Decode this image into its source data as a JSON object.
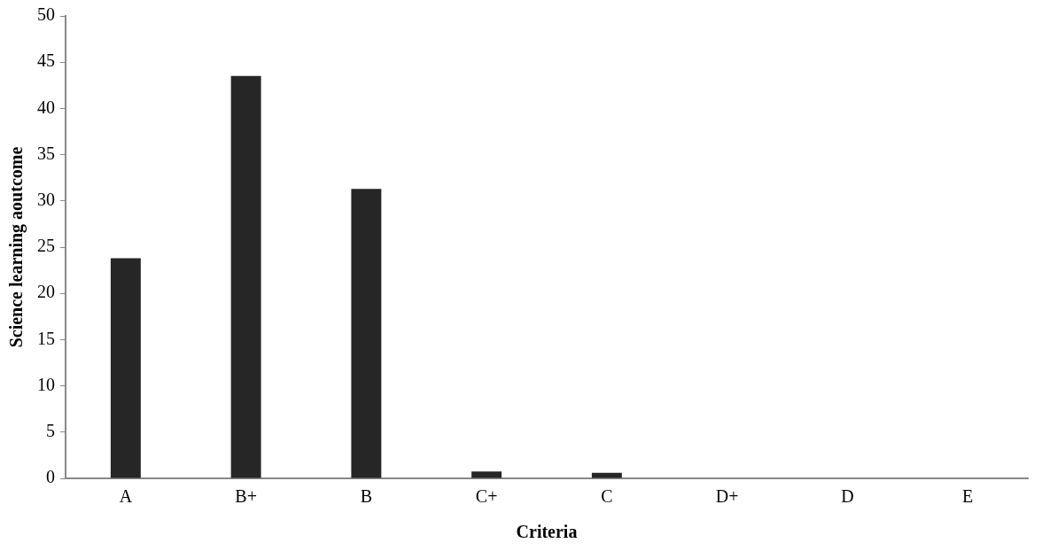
{
  "chart_data": {
    "type": "bar",
    "xlabel": "Criteria",
    "ylabel": "Science learning aoutcome",
    "categories": [
      "A",
      "B+",
      "B",
      "C+",
      "C",
      "D+",
      "D",
      "E"
    ],
    "values": [
      23.8,
      43.5,
      31.3,
      0.75,
      0.6,
      0,
      0,
      0
    ],
    "color": "#262626",
    "ylim": [
      0,
      50
    ],
    "yticks": [
      0,
      5,
      10,
      15,
      20,
      25,
      30,
      35,
      40,
      45,
      50
    ],
    "grid": false,
    "legend": false
  }
}
